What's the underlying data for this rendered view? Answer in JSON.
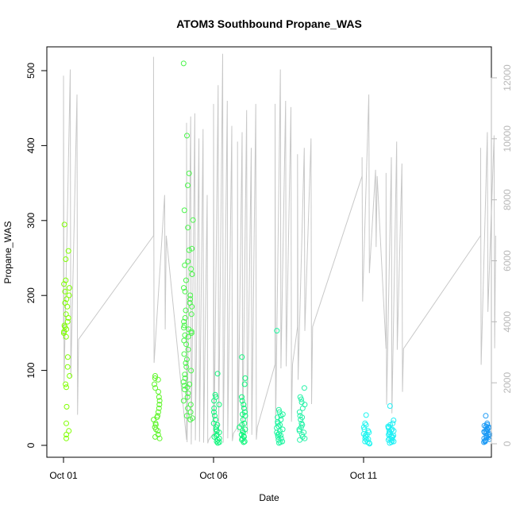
{
  "chart_data": {
    "type": "scatter",
    "title": "ATOM3 Southbound Propane_WAS",
    "xlabel": "Date",
    "ylabel": "Propane_WAS",
    "x_ticks": [
      "Oct 01",
      "Oct 06",
      "Oct 11"
    ],
    "y_ticks": [
      "0",
      "100",
      "200",
      "300",
      "400",
      "500"
    ],
    "y2_ticks": [
      "0",
      "2000",
      "4000",
      "6000",
      "8000",
      "10000",
      "12000"
    ],
    "ylim": [
      -15,
      530
    ],
    "y2lim": [
      -360,
      12720
    ],
    "grid": false,
    "series": [
      {
        "axis": "left",
        "mark": "open-circle",
        "color_scale": [
          "#7fff00",
          "#00ff7f",
          "#00ffff",
          "#0099ff"
        ],
        "clusters": [
          {
            "x_start": "Oct 01",
            "day": 0.0,
            "color": "#7fff00",
            "values": [
              294,
              259,
              248,
              220,
              215,
              210,
              205,
              200,
              195,
              190,
              185,
              175,
              170,
              165,
              160,
              158,
              155,
              152,
              150,
              145,
              118,
              105,
              93,
              82,
              78,
              52,
              30,
              20,
              15,
              10
            ]
          },
          {
            "x_start": "Oct 04",
            "day": 3.0,
            "color": "#5ef529",
            "values": [
              93,
              90,
              88,
              82,
              77,
              72,
              65,
              60,
              55,
              50,
              45,
              40,
              38,
              35,
              30,
              28,
              25,
              22,
              20,
              15,
              12,
              10
            ]
          },
          {
            "x_start": "Oct 05",
            "day": 4.0,
            "color": "#4af54a",
            "values": [
              508,
              412,
              362,
              346,
              313,
              300,
              290,
              262,
              260,
              245,
              240,
              235,
              228,
              220,
              210,
              205,
              200,
              195,
              190,
              185,
              180,
              175,
              170,
              165,
              160,
              157,
              155,
              152,
              150,
              147,
              145,
              140,
              135,
              128,
              122,
              115,
              110,
              105,
              100,
              95,
              90,
              85,
              82,
              80,
              78,
              75,
              70,
              65,
              60,
              55,
              50,
              45,
              40,
              37,
              35
            ]
          },
          {
            "x_start": "Oct 06",
            "day": 5.0,
            "color": "#10f57c",
            "values": [
              96,
              68,
              65,
              60,
              55,
              50,
              45,
              40,
              35,
              30,
              28,
              25,
              22,
              20,
              18,
              15,
              13,
              12,
              10,
              8,
              6,
              5,
              4
            ]
          },
          {
            "x_start": "Oct 07",
            "day": 5.85,
            "color": "#10f57c",
            "values": [
              118,
              90,
              82,
              65,
              60,
              55,
              50,
              45,
              42,
              40,
              35,
              30,
              28,
              25,
              22,
              20,
              18,
              15,
              13,
              12,
              10,
              8,
              6,
              5
            ]
          },
          {
            "x_start": "Oct 08",
            "day": 7.1,
            "color": "#1ff5a0",
            "values": [
              153,
              48,
              45,
              42,
              40,
              38,
              35,
              32,
              30,
              28,
              26,
              24,
              22,
              20,
              18,
              16,
              15,
              14,
              12,
              10,
              8,
              6,
              5,
              4
            ]
          },
          {
            "x_start": "Oct 09",
            "day": 7.85,
            "color": "#26f2a8",
            "values": [
              77,
              65,
              62,
              58,
              55,
              50,
              45,
              40,
              38,
              35,
              30,
              28,
              25,
              22,
              20,
              18,
              15,
              12,
              10,
              8
            ]
          },
          {
            "x_start": "Oct 11",
            "day": 10.0,
            "color": "#20f5f0",
            "values": [
              41,
              30,
              28,
              25,
              22,
              20,
              18,
              16,
              15,
              14,
              12,
              10,
              9,
              8,
              6,
              5,
              4,
              3
            ]
          },
          {
            "x_start": "Oct 12",
            "day": 10.8,
            "color": "#20f0f5",
            "values": [
              53,
              34,
              30,
              28,
              26,
              25,
              24,
              22,
              21,
              20,
              19,
              18,
              16,
              15,
              14,
              13,
              12,
              11,
              10,
              9,
              8,
              7,
              6,
              5,
              4
            ]
          },
          {
            "x_start": "Oct 14",
            "day": 14.0,
            "color": "#1a99f5",
            "values": [
              40,
              30,
              28,
              27,
              26,
              25,
              24,
              23,
              22,
              21,
              20,
              19,
              18,
              17,
              16,
              15,
              14,
              13,
              12,
              11,
              10,
              9,
              8,
              7,
              6,
              5
            ]
          }
        ]
      },
      {
        "axis": "right",
        "mark": "line",
        "color": "#c8c8c8",
        "segments": [
          {
            "x_start": "Oct 01",
            "day": 0.0,
            "low": 3400,
            "peaks": [
              11800,
              12000,
              11200
            ]
          },
          {
            "x_start": "Oct 04",
            "day": 3.0,
            "low": 6700,
            "peaks": [
              12400,
              8000
            ]
          },
          {
            "x_start": "Oct 05",
            "day": 4.1,
            "low": 200,
            "peaks": [
              10300,
              10500,
              10600,
              9800,
              10100,
              8000
            ]
          },
          {
            "x_start": "Oct 06",
            "day": 5.0,
            "low": 400,
            "peaks": [
              10900,
              11500,
              12500,
              11000,
              10200
            ]
          },
          {
            "x_start": "Oct 07",
            "day": 5.8,
            "low": 600,
            "peaks": [
              9700,
              10000,
              10700,
              9500,
              10900
            ]
          },
          {
            "x_start": "Oct 08",
            "day": 7.05,
            "low": 2600,
            "peaks": [
              10900,
              12000,
              11000,
              10800
            ]
          },
          {
            "x_start": "Oct 09",
            "day": 7.8,
            "low": 3800,
            "peaks": [
              9300,
              9500,
              9800
            ]
          },
          {
            "x_start": "Oct 11",
            "day": 9.95,
            "low": 8600,
            "peaks": [
              9200,
              11200,
              8800
            ]
          },
          {
            "x_start": "Oct 12",
            "day": 10.75,
            "low": 3100,
            "peaks": [
              8700,
              9200,
              9700,
              9000
            ]
          },
          {
            "x_start": "Oct 14",
            "day": 13.9,
            "low": 6700,
            "peaks": [
              9500,
              10000,
              9900
            ]
          }
        ]
      }
    ]
  }
}
